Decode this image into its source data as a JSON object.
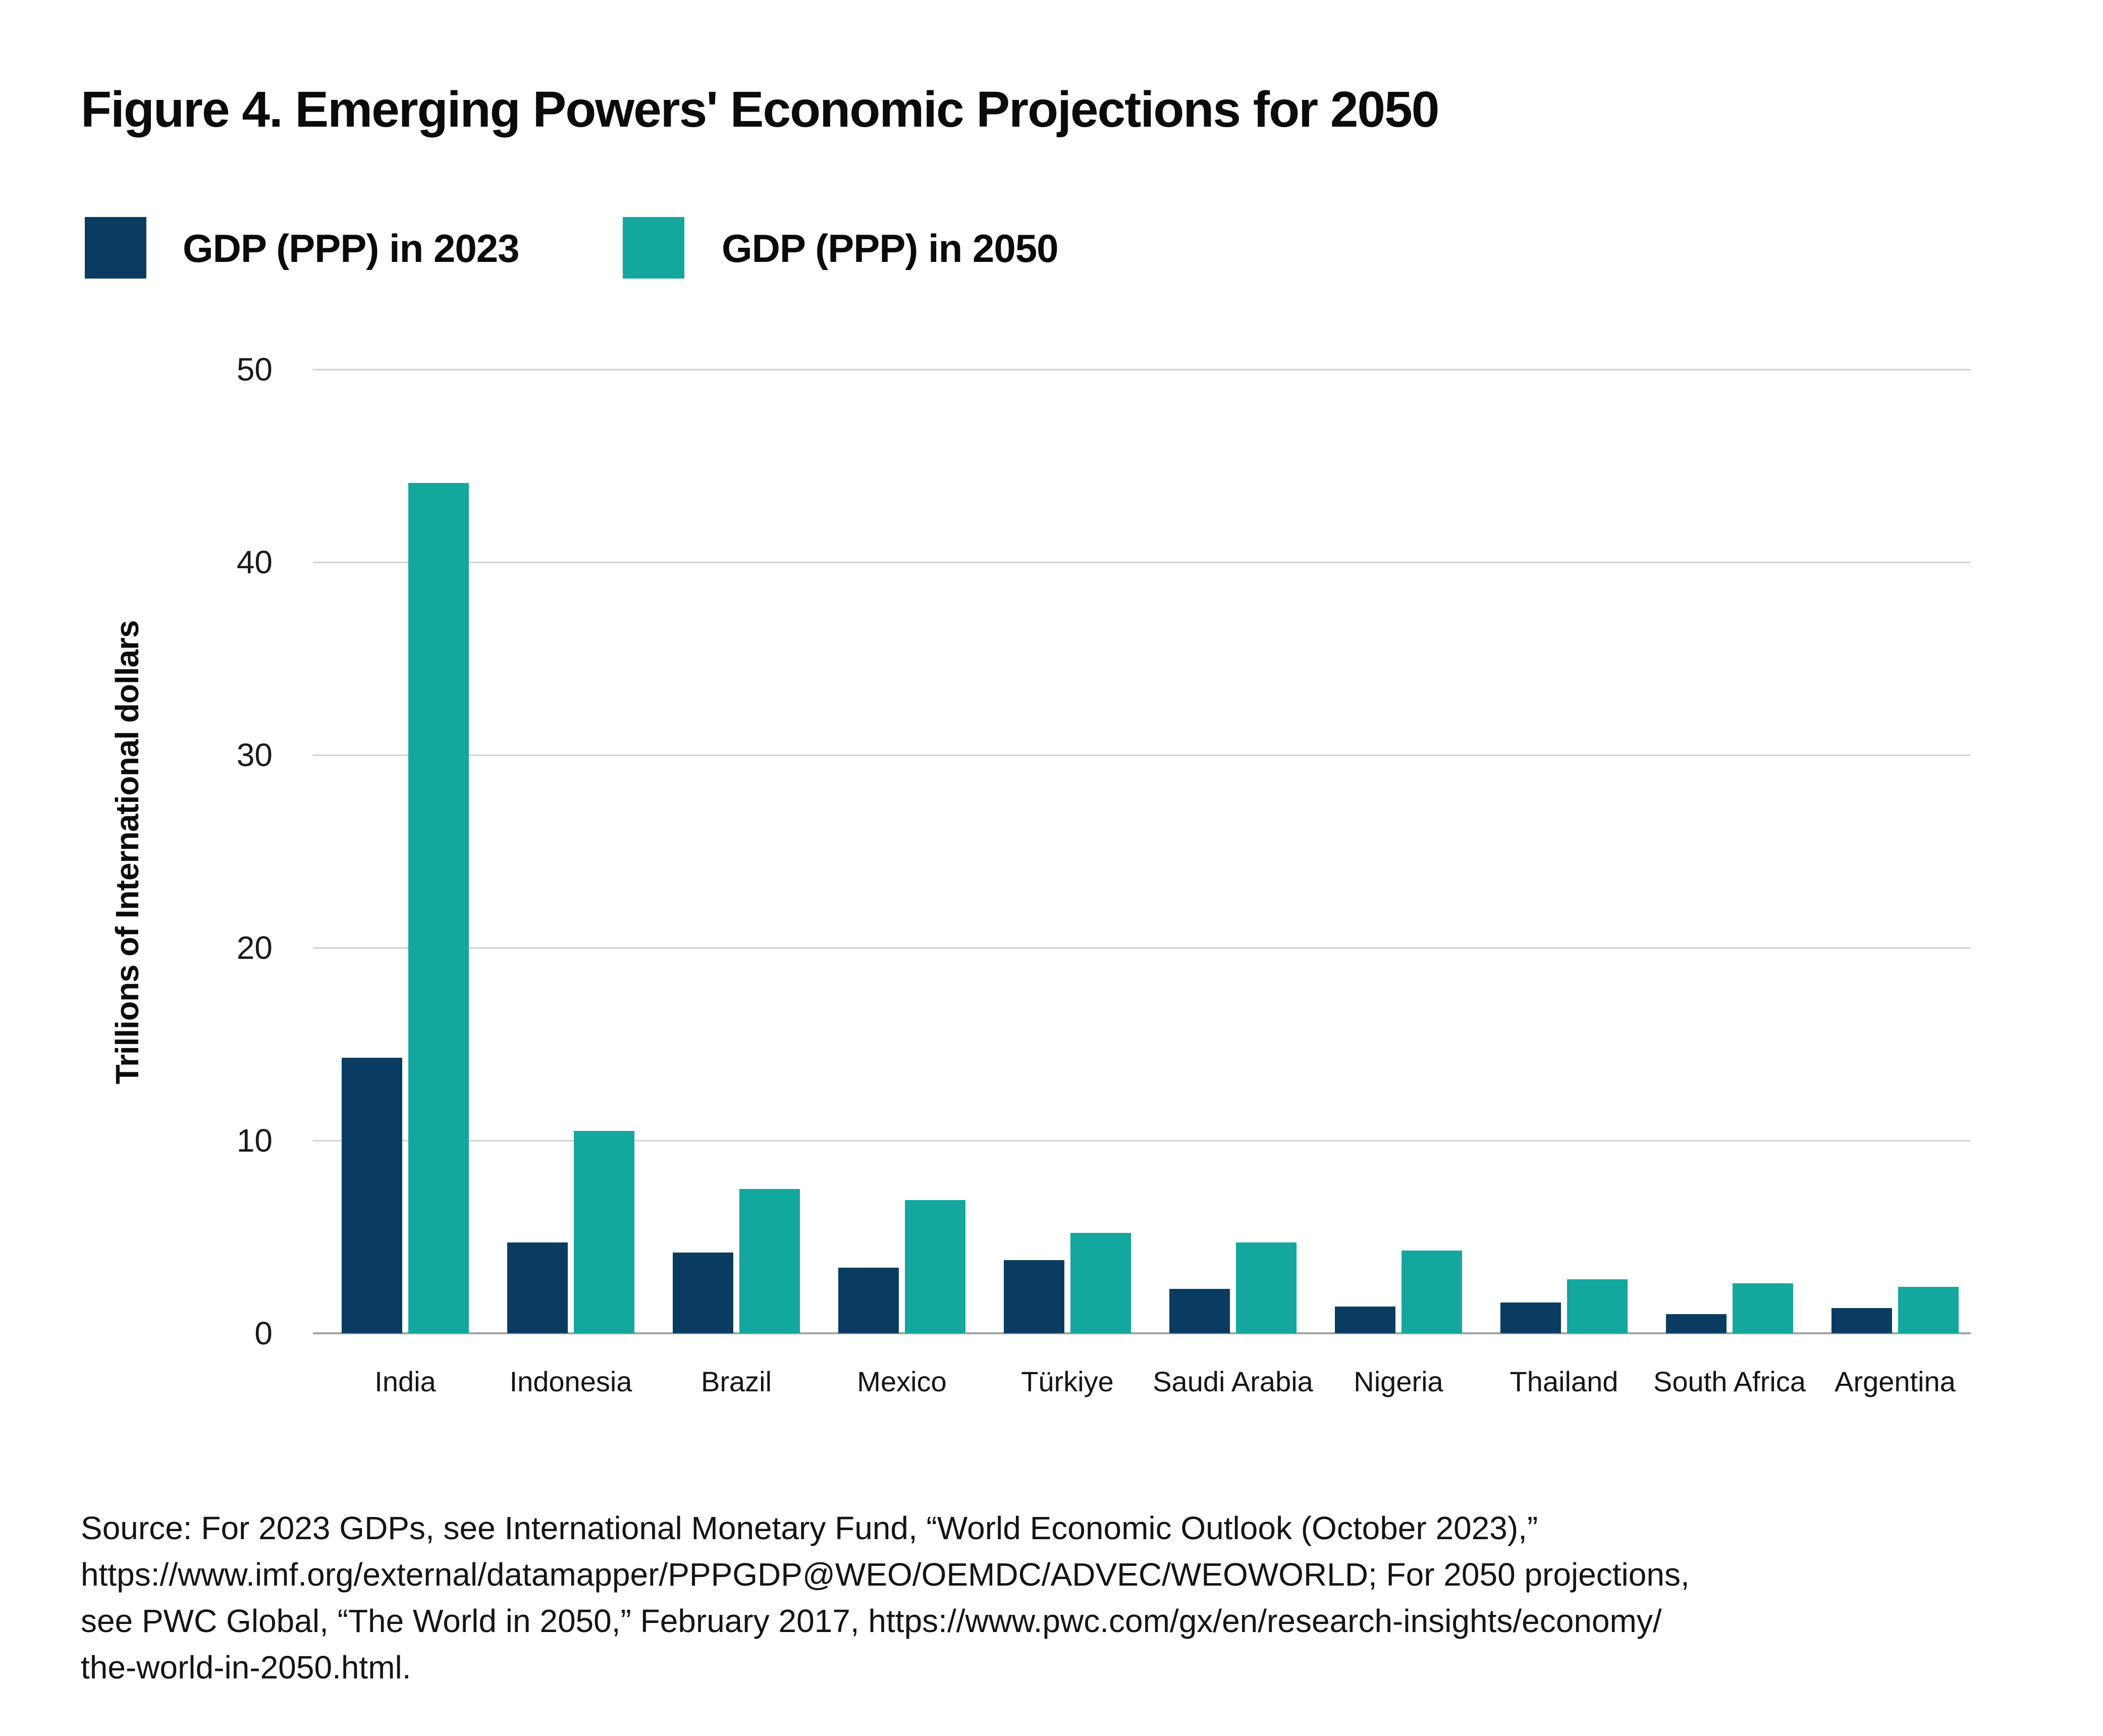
{
  "figure": {
    "title": "Figure 4. Emerging Powers' Economic Projections for 2050"
  },
  "legend": [
    {
      "label": "GDP (PPP) in 2023",
      "color": "#0a3c61"
    },
    {
      "label": "GDP (PPP) in 2050",
      "color": "#14a79e"
    }
  ],
  "chart_data": {
    "type": "bar",
    "title": "Figure 4. Emerging Powers' Economic Projections for 2050",
    "categories": [
      "India",
      "Indonesia",
      "Brazil",
      "Mexico",
      "Türkiye",
      "Saudi Arabia",
      "Nigeria",
      "Thailand",
      "South Africa",
      "Argentina"
    ],
    "series": [
      {
        "name": "GDP (PPP) in 2023",
        "color": "#0a3c61",
        "values": [
          14.3,
          4.7,
          4.2,
          3.4,
          3.8,
          2.3,
          1.4,
          1.6,
          1.0,
          1.3
        ]
      },
      {
        "name": "GDP (PPP) in 2050",
        "color": "#14a79e",
        "values": [
          44.1,
          10.5,
          7.5,
          6.9,
          5.2,
          4.7,
          4.3,
          2.8,
          2.6,
          2.4
        ]
      }
    ],
    "xlabel": "",
    "ylabel": "Trillions of International dollars",
    "ylim": [
      0,
      50
    ],
    "yticks": [
      0,
      10,
      20,
      30,
      40,
      50
    ],
    "grid": "horizontal",
    "legend_position": "top-left",
    "gridline_color": "#d2d2d2",
    "axisline_color": "#a3a3a3"
  },
  "source": {
    "lines": [
      "Source: For 2023 GDPs, see International Monetary Fund, “World Economic Outlook (October 2023),”",
      "https://www.imf.org/external/datamapper/PPPGDP@WEO/OEMDC/ADVEC/WEOWORLD; For 2050 projections,",
      "see PWC Global, “The World in 2050,” February 2017, https://www.pwc.com/gx/en/research-insights/economy/",
      "the-world-in-2050.html."
    ]
  }
}
